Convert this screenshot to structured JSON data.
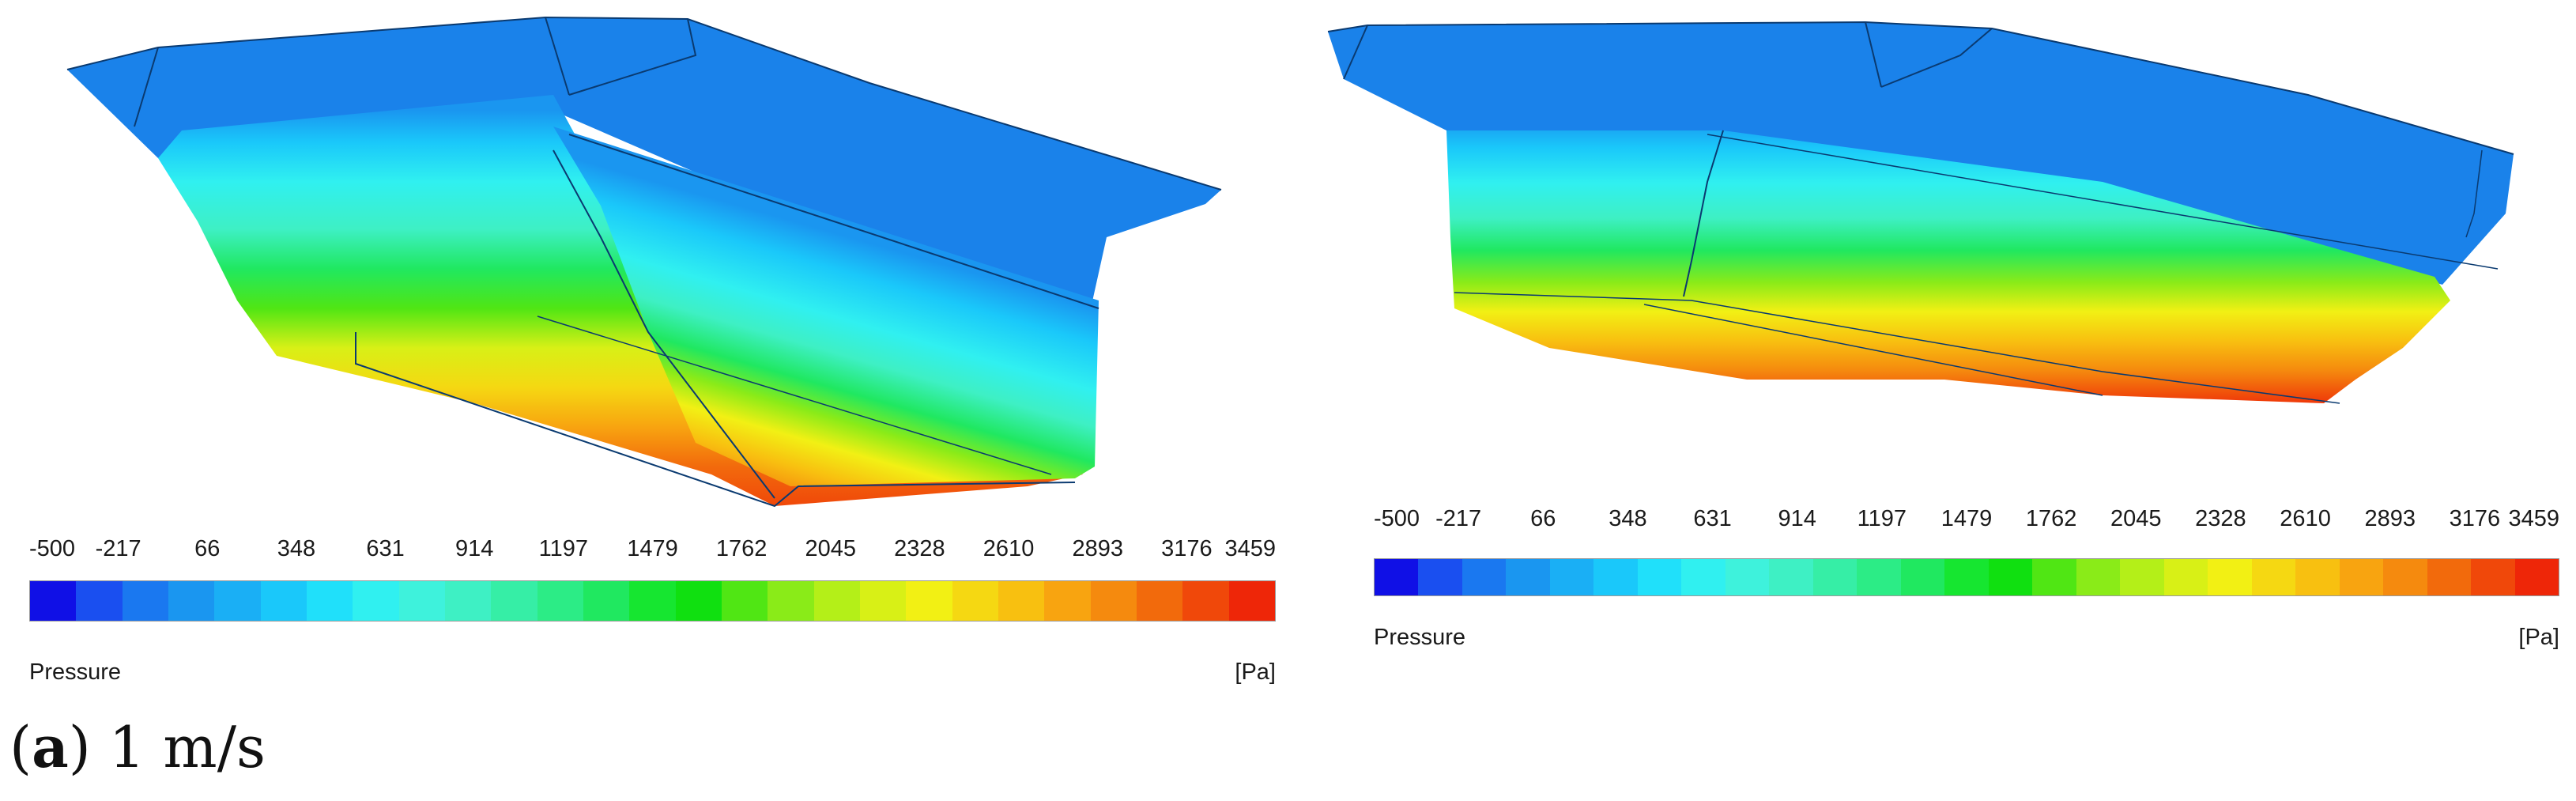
{
  "colors": [
    "#1010e6",
    "#1a4ff0",
    "#1a78f0",
    "#1a96f0",
    "#1aaff5",
    "#1ac8fa",
    "#20e0fa",
    "#30f0f0",
    "#3ef2dc",
    "#3ef0c4",
    "#36eea6",
    "#2cec86",
    "#20e860",
    "#16e630",
    "#10e010",
    "#50e614",
    "#8aeb18",
    "#b4ef18",
    "#d8f016",
    "#f2f014",
    "#f5d812",
    "#f8c010",
    "#f8a410",
    "#f58a0e",
    "#f26a0c",
    "#f0480a",
    "#ee2608"
  ],
  "left": {
    "ticks": [
      "-500",
      "-217",
      "66",
      "348",
      "631",
      "914",
      "1197",
      "1479",
      "1762",
      "2045",
      "2328",
      "2610",
      "2893",
      "3176",
      "3459"
    ],
    "title": "Pressure",
    "unit": "[Pa]"
  },
  "right": {
    "ticks": [
      "-500",
      "-217",
      "66",
      "348",
      "631",
      "914",
      "1197",
      "1479",
      "1762",
      "2045",
      "2328",
      "2610",
      "2893",
      "3176",
      "3459"
    ],
    "title": "Pressure",
    "unit": "[Pa]"
  },
  "caption": {
    "letter": "a",
    "text": " 1 m/s"
  }
}
